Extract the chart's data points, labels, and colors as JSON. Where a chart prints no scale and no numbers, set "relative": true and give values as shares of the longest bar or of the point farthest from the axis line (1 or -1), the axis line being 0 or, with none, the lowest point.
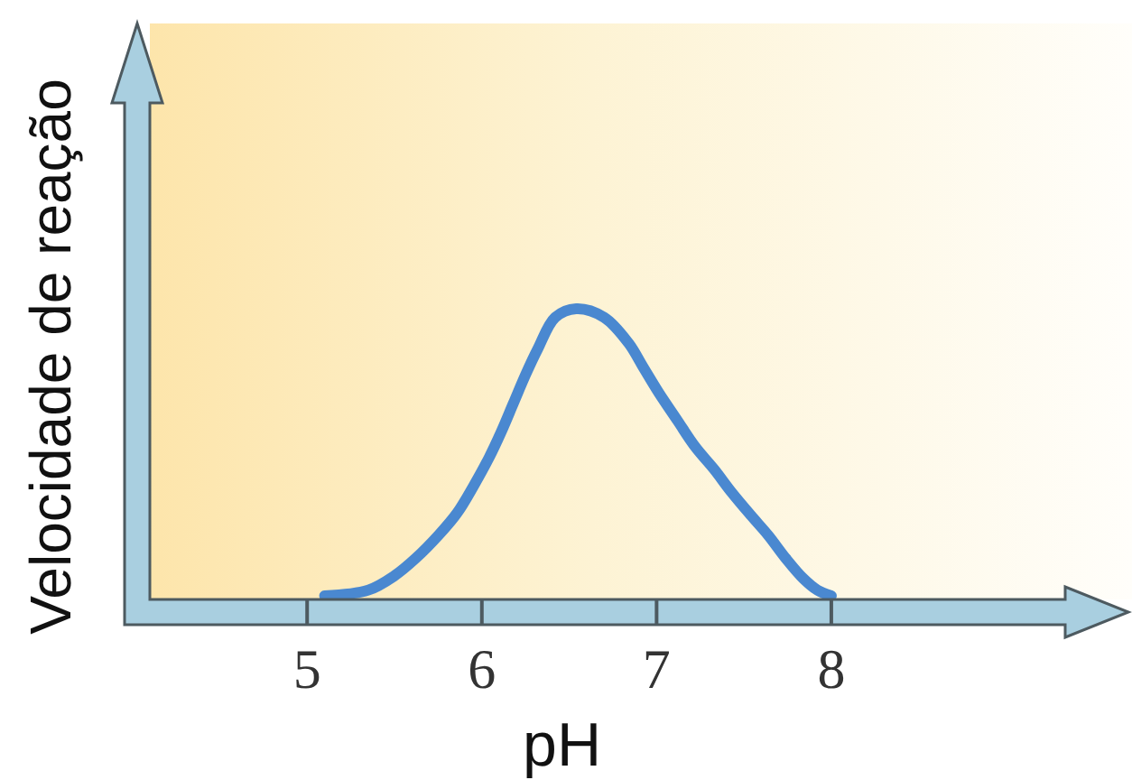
{
  "chart_data": {
    "type": "line",
    "xlabel": "pH",
    "ylabel": "Velocidade de reação",
    "relative": true,
    "tick_labels": "x",
    "xlim": [
      4.1,
      9.7
    ],
    "xticks": [
      5,
      6,
      7,
      8
    ],
    "series": [
      {
        "color": "#4a88d0",
        "x": [
          5.1,
          5.35,
          5.5,
          5.62,
          5.75,
          5.86,
          5.95,
          6.04,
          6.11,
          6.18,
          6.25,
          6.32,
          6.42,
          6.54,
          6.7,
          6.84,
          6.92,
          7.01,
          7.12,
          7.22,
          7.33,
          7.43,
          7.54,
          7.64,
          7.74,
          7.84,
          7.92,
          8.0
        ],
        "values": [
          0,
          0.02,
          0.07,
          0.13,
          0.21,
          0.29,
          0.38,
          0.48,
          0.57,
          0.67,
          0.77,
          0.86,
          0.97,
          1,
          0.97,
          0.88,
          0.8,
          0.71,
          0.61,
          0.52,
          0.44,
          0.36,
          0.28,
          0.21,
          0.13,
          0.06,
          0.02,
          0
        ]
      }
    ]
  }
}
